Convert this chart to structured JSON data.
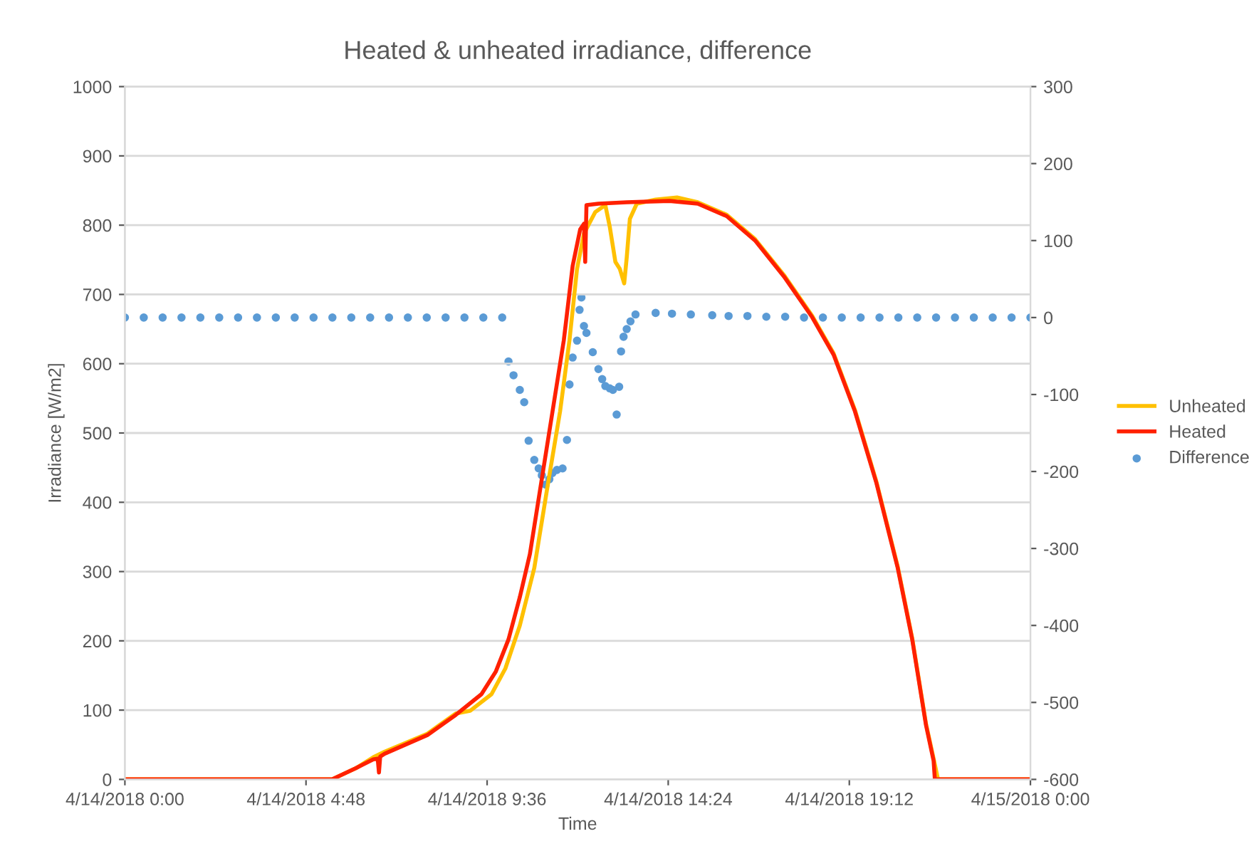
{
  "chart_data": {
    "type": "line",
    "title": "Heated & unheated irradiance, difference",
    "xlabel": "Time",
    "ylabel": "Irradiance [W/m2]",
    "xlim": [
      "2018-04-14T00:00",
      "2018-04-15T00:00"
    ],
    "xticks": [
      {
        "value": "2018-04-14T00:00",
        "label": "4/14/2018 0:00"
      },
      {
        "value": "2018-04-14T04:48",
        "label": "4/14/2018 4:48"
      },
      {
        "value": "2018-04-14T09:36",
        "label": "4/14/2018 9:36"
      },
      {
        "value": "2018-04-14T14:24",
        "label": "4/14/2018 14:24"
      },
      {
        "value": "2018-04-14T19:12",
        "label": "4/14/2018 19:12"
      },
      {
        "value": "2018-04-15T00:00",
        "label": "4/15/2018 0:00"
      }
    ],
    "ylim": [
      0,
      1000
    ],
    "yticks": [
      0,
      100,
      200,
      300,
      400,
      500,
      600,
      700,
      800,
      900,
      1000
    ],
    "y2lim": [
      -600,
      300
    ],
    "y2ticks": [
      -600,
      -500,
      -400,
      -300,
      -200,
      -100,
      0,
      100,
      200,
      300
    ],
    "grid": "y",
    "legend": "right",
    "series": [
      {
        "name": "Unheated",
        "color": "#ffc000",
        "marker": "none",
        "x": [
          "2018-04-14T00:00",
          "2018-04-14T05:29",
          "2018-04-14T06:07",
          "2018-04-14T06:35",
          "2018-04-14T06:53",
          "2018-04-14T08:01",
          "2018-04-14T08:46",
          "2018-04-14T09:09",
          "2018-04-14T09:43",
          "2018-04-14T10:05",
          "2018-04-14T10:28",
          "2018-04-14T10:51",
          "2018-04-14T11:13",
          "2018-04-14T11:32",
          "2018-04-14T11:47",
          "2018-04-14T11:59",
          "2018-04-14T12:10",
          "2018-04-14T12:28",
          "2018-04-14T12:44",
          "2018-04-14T12:51",
          "2018-04-14T13:00",
          "2018-04-14T13:07",
          "2018-04-14T13:14",
          "2018-04-14T13:18",
          "2018-04-14T13:23",
          "2018-04-14T13:34",
          "2018-04-14T14:04",
          "2018-04-14T14:38",
          "2018-04-14T15:11",
          "2018-04-14T15:57",
          "2018-04-14T16:42",
          "2018-04-14T17:28",
          "2018-04-14T18:13",
          "2018-04-14T18:47",
          "2018-04-14T19:21",
          "2018-04-14T19:55",
          "2018-04-14T20:29",
          "2018-04-14T20:52",
          "2018-04-14T21:14",
          "2018-04-14T21:26",
          "2018-04-14T21:33",
          "2018-04-15T00:00"
        ],
        "values": [
          0,
          0,
          16,
          32,
          40,
          66,
          95,
          99,
          123,
          160,
          222,
          305,
          428,
          531,
          634,
          737,
          788,
          819,
          829,
          798,
          747,
          737,
          716,
          753,
          809,
          831,
          837,
          840,
          833,
          815,
          780,
          728,
          669,
          615,
          533,
          430,
          307,
          204,
          80,
          30,
          0,
          0
        ]
      },
      {
        "name": "Heated",
        "color": "#ff2000",
        "marker": "none",
        "x": [
          "2018-04-14T00:00",
          "2018-04-14T05:29",
          "2018-04-14T06:07",
          "2018-04-14T06:35",
          "2018-04-14T06:42",
          "2018-04-14T06:44",
          "2018-04-14T06:46",
          "2018-04-14T06:53",
          "2018-04-14T08:01",
          "2018-04-14T08:46",
          "2018-04-14T09:27",
          "2018-04-14T09:50",
          "2018-04-14T10:10",
          "2018-04-14T10:28",
          "2018-04-14T10:44",
          "2018-04-14T11:02",
          "2018-04-14T11:20",
          "2018-04-14T11:38",
          "2018-04-14T11:52",
          "2018-04-14T12:04",
          "2018-04-14T12:10",
          "2018-04-14T12:12",
          "2018-04-14T12:14",
          "2018-04-14T12:33",
          "2018-04-14T13:18",
          "2018-04-14T14:26",
          "2018-04-14T15:11",
          "2018-04-14T15:57",
          "2018-04-14T16:42",
          "2018-04-14T17:28",
          "2018-04-14T18:13",
          "2018-04-14T18:47",
          "2018-04-14T19:21",
          "2018-04-14T19:55",
          "2018-04-14T20:29",
          "2018-04-14T20:52",
          "2018-04-14T21:14",
          "2018-04-14T21:26",
          "2018-04-14T21:28",
          "2018-04-15T00:00"
        ],
        "values": [
          0,
          0,
          16,
          29,
          30,
          10,
          33,
          37,
          64,
          93,
          123,
          156,
          202,
          263,
          325,
          428,
          531,
          634,
          741,
          794,
          802,
          747,
          829,
          831,
          833,
          835,
          831,
          813,
          778,
          726,
          667,
          613,
          531,
          428,
          305,
          202,
          78,
          27,
          0,
          0
        ]
      },
      {
        "name": "Difference",
        "color": "#5b9bd5",
        "type": "scatter",
        "marker": "circle",
        "axis": "y2",
        "x": [
          "2018-04-14T00:00",
          "2018-04-14T00:30",
          "2018-04-14T01:00",
          "2018-04-14T01:30",
          "2018-04-14T02:00",
          "2018-04-14T02:30",
          "2018-04-14T03:00",
          "2018-04-14T03:30",
          "2018-04-14T04:00",
          "2018-04-14T04:30",
          "2018-04-14T05:00",
          "2018-04-14T05:30",
          "2018-04-14T06:00",
          "2018-04-14T06:30",
          "2018-04-14T07:00",
          "2018-04-14T07:30",
          "2018-04-14T08:00",
          "2018-04-14T08:30",
          "2018-04-14T09:00",
          "2018-04-14T09:30",
          "2018-04-14T10:00",
          "2018-04-14T10:10",
          "2018-04-14T10:18",
          "2018-04-14T10:28",
          "2018-04-14T10:35",
          "2018-04-14T10:42",
          "2018-04-14T10:51",
          "2018-04-14T10:58",
          "2018-04-14T11:03",
          "2018-04-14T11:09",
          "2018-04-14T11:15",
          "2018-04-14T11:20",
          "2018-04-14T11:27",
          "2018-04-14T11:36",
          "2018-04-14T11:43",
          "2018-04-14T11:47",
          "2018-04-14T11:52",
          "2018-04-14T11:59",
          "2018-04-14T12:03",
          "2018-04-14T12:06",
          "2018-04-14T12:10",
          "2018-04-14T12:14",
          "2018-04-14T12:24",
          "2018-04-14T12:33",
          "2018-04-14T12:39",
          "2018-04-14T12:44",
          "2018-04-14T12:51",
          "2018-04-14T12:56",
          "2018-04-14T13:02",
          "2018-04-14T13:06",
          "2018-04-14T13:09",
          "2018-04-14T13:13",
          "2018-04-14T13:18",
          "2018-04-14T13:24",
          "2018-04-14T13:32",
          "2018-04-14T14:04",
          "2018-04-14T14:30",
          "2018-04-14T15:00",
          "2018-04-14T15:34",
          "2018-04-14T16:00",
          "2018-04-14T16:30",
          "2018-04-14T17:00",
          "2018-04-14T17:30",
          "2018-04-14T18:00",
          "2018-04-14T18:30",
          "2018-04-14T19:00",
          "2018-04-14T19:30",
          "2018-04-14T20:00",
          "2018-04-14T20:30",
          "2018-04-14T21:00",
          "2018-04-14T21:30",
          "2018-04-14T22:00",
          "2018-04-14T22:30",
          "2018-04-14T23:00",
          "2018-04-14T23:30",
          "2018-04-15T00:00"
        ],
        "values": [
          0,
          0,
          0,
          0,
          0,
          0,
          0,
          0,
          0,
          0,
          0,
          0,
          0,
          0,
          0,
          0,
          0,
          0,
          0,
          0,
          0,
          -57,
          -75,
          -94,
          -110,
          -160,
          -185,
          -196,
          -205,
          -217,
          -210,
          -202,
          -198,
          -196,
          -159,
          -87,
          -52,
          -30,
          10,
          26,
          -11,
          -20,
          -45,
          -67,
          -80,
          -89,
          -92,
          -94,
          -126,
          -90,
          -44,
          -25,
          -15,
          -5,
          4,
          6,
          5,
          4,
          3,
          2,
          2,
          1,
          1,
          0,
          0,
          0,
          0,
          0,
          0,
          0,
          0,
          0,
          0,
          0,
          0,
          0
        ]
      }
    ]
  }
}
